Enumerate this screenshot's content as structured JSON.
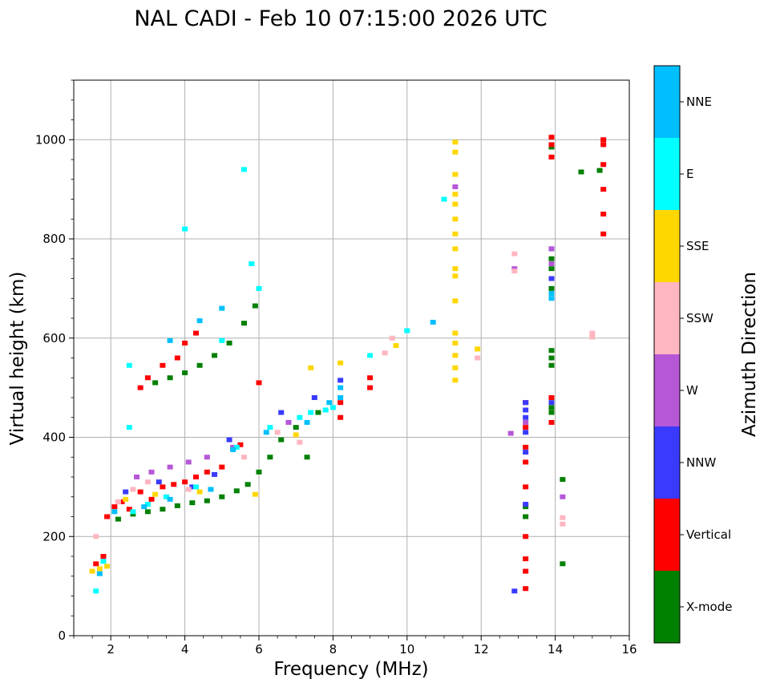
{
  "chart_data": {
    "type": "scatter",
    "title": "NAL CADI - Feb 10 07:15:00 2026 UTC",
    "xlabel": "Frequency (MHz)",
    "ylabel": "Virtual height (km)",
    "xlim": [
      1,
      16
    ],
    "ylim": [
      0,
      1120
    ],
    "x_ticks": [
      2,
      4,
      6,
      8,
      10,
      12,
      14,
      16
    ],
    "y_ticks": [
      0,
      200,
      400,
      600,
      800,
      1000
    ],
    "x_tick_labels": [
      "2",
      "4",
      "6",
      "8",
      "10",
      "12",
      "14",
      "16"
    ],
    "y_tick_labels": [
      "0",
      "200",
      "400",
      "600",
      "800",
      "1000"
    ],
    "grid": true,
    "colorbar": {
      "label": "Azimuth Direction",
      "categories": [
        {
          "name": "X-mode",
          "color": "#008000"
        },
        {
          "name": "Vertical",
          "color": "#ff0000"
        },
        {
          "name": "NNW",
          "color": "#3a3aff"
        },
        {
          "name": "W",
          "color": "#b557d7"
        },
        {
          "name": "SSW",
          "color": "#ffb6c1"
        },
        {
          "name": "SSE",
          "color": "#ffd700"
        },
        {
          "name": "E",
          "color": "#00ffff"
        },
        {
          "name": "NNE",
          "color": "#00bfff"
        }
      ]
    },
    "series": [
      {
        "name": "X-mode",
        "color": "#008000",
        "points": [
          [
            2.2,
            235
          ],
          [
            2.6,
            245
          ],
          [
            3.0,
            250
          ],
          [
            3.4,
            255
          ],
          [
            3.8,
            262
          ],
          [
            4.2,
            268
          ],
          [
            4.6,
            272
          ],
          [
            5.0,
            280
          ],
          [
            5.4,
            292
          ],
          [
            5.7,
            305
          ],
          [
            6.0,
            330
          ],
          [
            6.3,
            360
          ],
          [
            6.6,
            395
          ],
          [
            7.0,
            420
          ],
          [
            7.3,
            360
          ],
          [
            7.6,
            450
          ],
          [
            3.2,
            510
          ],
          [
            3.6,
            520
          ],
          [
            4.0,
            530
          ],
          [
            4.4,
            545
          ],
          [
            4.8,
            565
          ],
          [
            5.2,
            590
          ],
          [
            5.6,
            630
          ],
          [
            5.9,
            665
          ],
          [
            13.2,
            240
          ],
          [
            13.2,
            260
          ],
          [
            13.9,
            450
          ],
          [
            13.9,
            460
          ],
          [
            13.9,
            575
          ],
          [
            13.9,
            560
          ],
          [
            13.9,
            545
          ],
          [
            13.9,
            740
          ],
          [
            13.9,
            760
          ],
          [
            13.9,
            700
          ],
          [
            14.2,
            145
          ],
          [
            14.2,
            315
          ],
          [
            13.9,
            985
          ],
          [
            15.2,
            938
          ],
          [
            14.7,
            935
          ]
        ]
      },
      {
        "name": "Vertical",
        "color": "#ff0000",
        "points": [
          [
            1.6,
            145
          ],
          [
            1.8,
            160
          ],
          [
            1.9,
            240
          ],
          [
            2.1,
            260
          ],
          [
            2.3,
            270
          ],
          [
            2.5,
            255
          ],
          [
            2.8,
            290
          ],
          [
            3.1,
            275
          ],
          [
            3.4,
            300
          ],
          [
            3.7,
            305
          ],
          [
            4.0,
            310
          ],
          [
            4.3,
            320
          ],
          [
            4.6,
            330
          ],
          [
            5.0,
            340
          ],
          [
            5.5,
            385
          ],
          [
            6.0,
            510
          ],
          [
            8.2,
            470
          ],
          [
            8.2,
            440
          ],
          [
            9.0,
            520
          ],
          [
            9.0,
            500
          ],
          [
            2.8,
            500
          ],
          [
            3.0,
            520
          ],
          [
            3.4,
            545
          ],
          [
            3.8,
            560
          ],
          [
            4.0,
            590
          ],
          [
            4.3,
            610
          ],
          [
            13.2,
            95
          ],
          [
            13.2,
            130
          ],
          [
            13.2,
            155
          ],
          [
            13.2,
            200
          ],
          [
            13.2,
            300
          ],
          [
            13.2,
            350
          ],
          [
            13.2,
            380
          ],
          [
            13.2,
            420
          ],
          [
            13.2,
            470
          ],
          [
            13.9,
            430
          ],
          [
            13.9,
            480
          ],
          [
            13.9,
            990
          ],
          [
            13.9,
            1005
          ],
          [
            13.9,
            965
          ],
          [
            15.3,
            850
          ],
          [
            15.3,
            900
          ],
          [
            15.3,
            990
          ],
          [
            15.3,
            1000
          ],
          [
            15.3,
            950
          ],
          [
            15.3,
            810
          ]
        ]
      },
      {
        "name": "NNW",
        "color": "#3a3aff",
        "points": [
          [
            2.4,
            290
          ],
          [
            3.3,
            310
          ],
          [
            4.2,
            300
          ],
          [
            4.8,
            325
          ],
          [
            5.2,
            395
          ],
          [
            6.6,
            450
          ],
          [
            7.5,
            480
          ],
          [
            8.2,
            515
          ],
          [
            13.2,
            370
          ],
          [
            13.2,
            410
          ],
          [
            13.2,
            440
          ],
          [
            13.2,
            455
          ],
          [
            13.2,
            470
          ],
          [
            13.2,
            265
          ],
          [
            12.9,
            90
          ],
          [
            13.9,
            470
          ],
          [
            13.9,
            780
          ],
          [
            13.9,
            720
          ]
        ]
      },
      {
        "name": "W",
        "color": "#b557d7",
        "points": [
          [
            2.7,
            320
          ],
          [
            3.1,
            330
          ],
          [
            3.6,
            340
          ],
          [
            4.1,
            350
          ],
          [
            4.6,
            360
          ],
          [
            5.3,
            380
          ],
          [
            6.8,
            430
          ],
          [
            12.9,
            740
          ],
          [
            12.8,
            408
          ],
          [
            13.2,
            430
          ],
          [
            13.9,
            780
          ],
          [
            13.9,
            750
          ],
          [
            14.2,
            280
          ],
          [
            11.3,
            905
          ]
        ]
      },
      {
        "name": "SSW",
        "color": "#ffb6c1",
        "points": [
          [
            1.6,
            200
          ],
          [
            2.2,
            270
          ],
          [
            2.6,
            295
          ],
          [
            3.0,
            310
          ],
          [
            3.5,
            280
          ],
          [
            4.1,
            295
          ],
          [
            5.6,
            360
          ],
          [
            6.5,
            410
          ],
          [
            7.1,
            390
          ],
          [
            9.4,
            570
          ],
          [
            9.6,
            600
          ],
          [
            11.9,
            560
          ],
          [
            12.9,
            770
          ],
          [
            12.9,
            735
          ],
          [
            14.2,
            238
          ],
          [
            14.2,
            225
          ],
          [
            15.0,
            610
          ],
          [
            15.0,
            602
          ]
        ]
      },
      {
        "name": "SSE",
        "color": "#ffd700",
        "points": [
          [
            1.5,
            130
          ],
          [
            1.7,
            135
          ],
          [
            1.9,
            140
          ],
          [
            2.4,
            275
          ],
          [
            3.2,
            285
          ],
          [
            4.4,
            290
          ],
          [
            5.9,
            285
          ],
          [
            7.0,
            405
          ],
          [
            7.4,
            540
          ],
          [
            8.2,
            550
          ],
          [
            9.7,
            585
          ],
          [
            11.9,
            578
          ],
          [
            11.3,
            515
          ],
          [
            11.3,
            540
          ],
          [
            11.3,
            565
          ],
          [
            11.3,
            590
          ],
          [
            11.3,
            610
          ],
          [
            11.3,
            675
          ],
          [
            11.3,
            725
          ],
          [
            11.3,
            740
          ],
          [
            11.3,
            780
          ],
          [
            11.3,
            810
          ],
          [
            11.3,
            840
          ],
          [
            11.3,
            870
          ],
          [
            11.3,
            890
          ],
          [
            11.3,
            930
          ],
          [
            11.3,
            975
          ],
          [
            11.3,
            995
          ]
        ]
      },
      {
        "name": "E",
        "color": "#00ffff",
        "points": [
          [
            1.6,
            90
          ],
          [
            1.8,
            150
          ],
          [
            2.5,
            545
          ],
          [
            2.5,
            420
          ],
          [
            2.6,
            250
          ],
          [
            3.0,
            265
          ],
          [
            3.5,
            280
          ],
          [
            4.3,
            300
          ],
          [
            5.4,
            380
          ],
          [
            6.3,
            420
          ],
          [
            7.1,
            440
          ],
          [
            7.4,
            450
          ],
          [
            7.8,
            455
          ],
          [
            8.0,
            460
          ],
          [
            9.0,
            565
          ],
          [
            10.0,
            615
          ],
          [
            11.0,
            880
          ],
          [
            5.8,
            750
          ],
          [
            6.0,
            700
          ],
          [
            5.0,
            595
          ],
          [
            4.0,
            820
          ],
          [
            5.6,
            940
          ]
        ]
      },
      {
        "name": "NNE",
        "color": "#00bfff",
        "points": [
          [
            1.7,
            125
          ],
          [
            2.1,
            250
          ],
          [
            2.9,
            260
          ],
          [
            3.6,
            275
          ],
          [
            4.7,
            295
          ],
          [
            5.3,
            375
          ],
          [
            6.2,
            410
          ],
          [
            7.3,
            430
          ],
          [
            7.9,
            470
          ],
          [
            8.2,
            500
          ],
          [
            8.2,
            480
          ],
          [
            10.7,
            632
          ],
          [
            13.9,
            680
          ],
          [
            13.9,
            690
          ],
          [
            5.0,
            660
          ],
          [
            4.4,
            635
          ],
          [
            3.6,
            595
          ]
        ]
      }
    ]
  }
}
